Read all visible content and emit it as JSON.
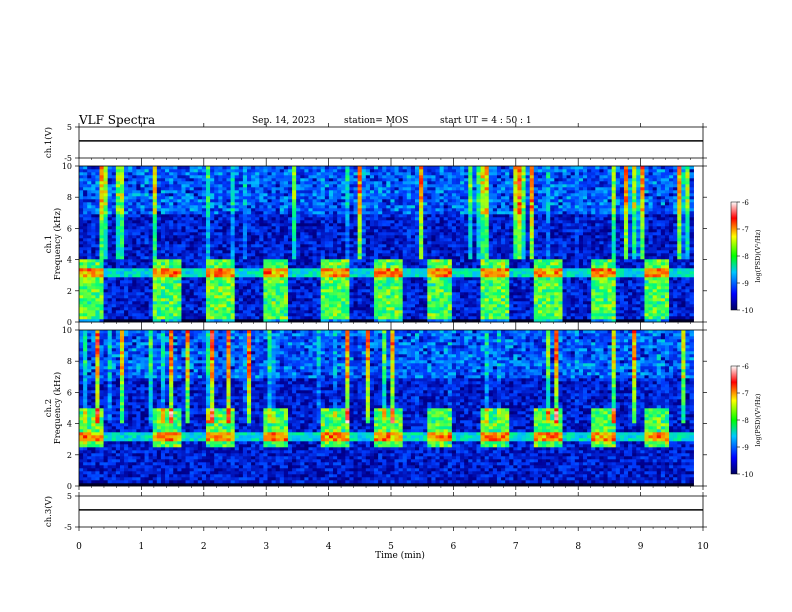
{
  "header": {
    "title": "VLF Spectra",
    "date": "Sep. 14, 2023",
    "station": "station= MOS",
    "start_ut": "start  UT =   4 : 50 : 1"
  },
  "colors": {
    "background_dark": "#00003a",
    "trace": "#000000",
    "colormap": [
      "#000080",
      "#0000ff",
      "#00ffff",
      "#00ff00",
      "#ffff00",
      "#ff0000",
      "#ffffff"
    ]
  },
  "chart_data": [
    {
      "type": "line",
      "panel": "ch1-voltage",
      "ylabel": "ch.1(V)",
      "ylim": [
        -5,
        5
      ],
      "yticks": [
        "5",
        "-5"
      ],
      "x": [
        0,
        1,
        2,
        3,
        4,
        5,
        6,
        7,
        8,
        9,
        10
      ],
      "xlim": [
        0,
        10
      ],
      "series": [
        {
          "values": [
            0.5,
            0.5,
            0.5,
            0.5,
            0.5,
            0.5,
            0.5,
            0.5,
            0.5,
            0.5,
            0.5
          ]
        }
      ]
    },
    {
      "type": "heatmap",
      "panel": "ch1-spectrogram",
      "ylabel": "ch.1\nFrequency (kHz)",
      "ylim": [
        0,
        10
      ],
      "yticks": [
        "0",
        "2",
        "4",
        "6",
        "8",
        "10"
      ],
      "xlim": [
        0,
        10
      ],
      "data_end_min": 9.85,
      "colorbar": {
        "label": "log(PSD)(V²/Hz)",
        "ticks": [
          "-6",
          "-7",
          "-8",
          "-9",
          "-10"
        ],
        "range": [
          -10,
          -6
        ]
      },
      "bursts_min": [
        0.0,
        1.2,
        2.05,
        2.95,
        3.9,
        4.75,
        5.55,
        6.45,
        7.3,
        8.2,
        9.05
      ],
      "burst_band_khz": [
        0,
        4
      ]
    },
    {
      "type": "heatmap",
      "panel": "ch2-spectrogram",
      "ylabel": "ch.2\nFrequency (kHz)",
      "ylim": [
        0,
        10
      ],
      "yticks": [
        "0",
        "2",
        "4",
        "6",
        "8",
        "10"
      ],
      "xlim": [
        0,
        10
      ],
      "data_end_min": 9.85,
      "colorbar": {
        "label": "log(PSD)(V²/Hz)",
        "ticks": [
          "-6",
          "-7",
          "-8",
          "-9",
          "-10"
        ],
        "range": [
          -10,
          -6
        ]
      },
      "bursts_min": [
        0.0,
        1.2,
        2.05,
        2.95,
        3.9,
        4.75,
        5.55,
        6.45,
        7.3,
        8.2,
        9.05
      ],
      "burst_band_khz": [
        2.5,
        5
      ]
    },
    {
      "type": "line",
      "panel": "ch3-voltage",
      "ylabel": "ch.3(V)",
      "ylim": [
        -5,
        5
      ],
      "yticks": [
        "5",
        "-5"
      ],
      "x": [
        0,
        1,
        2,
        3,
        4,
        5,
        6,
        7,
        8,
        9,
        10
      ],
      "xlim": [
        0,
        10
      ],
      "xlabel": "Time  (min)",
      "xticks": [
        "0",
        "1",
        "2",
        "3",
        "4",
        "5",
        "6",
        "7",
        "8",
        "9",
        "10"
      ],
      "series": [
        {
          "values": [
            0.5,
            0.5,
            0.5,
            0.5,
            0.5,
            0.5,
            0.5,
            0.5,
            0.5,
            0.5,
            0.5
          ]
        }
      ]
    }
  ]
}
